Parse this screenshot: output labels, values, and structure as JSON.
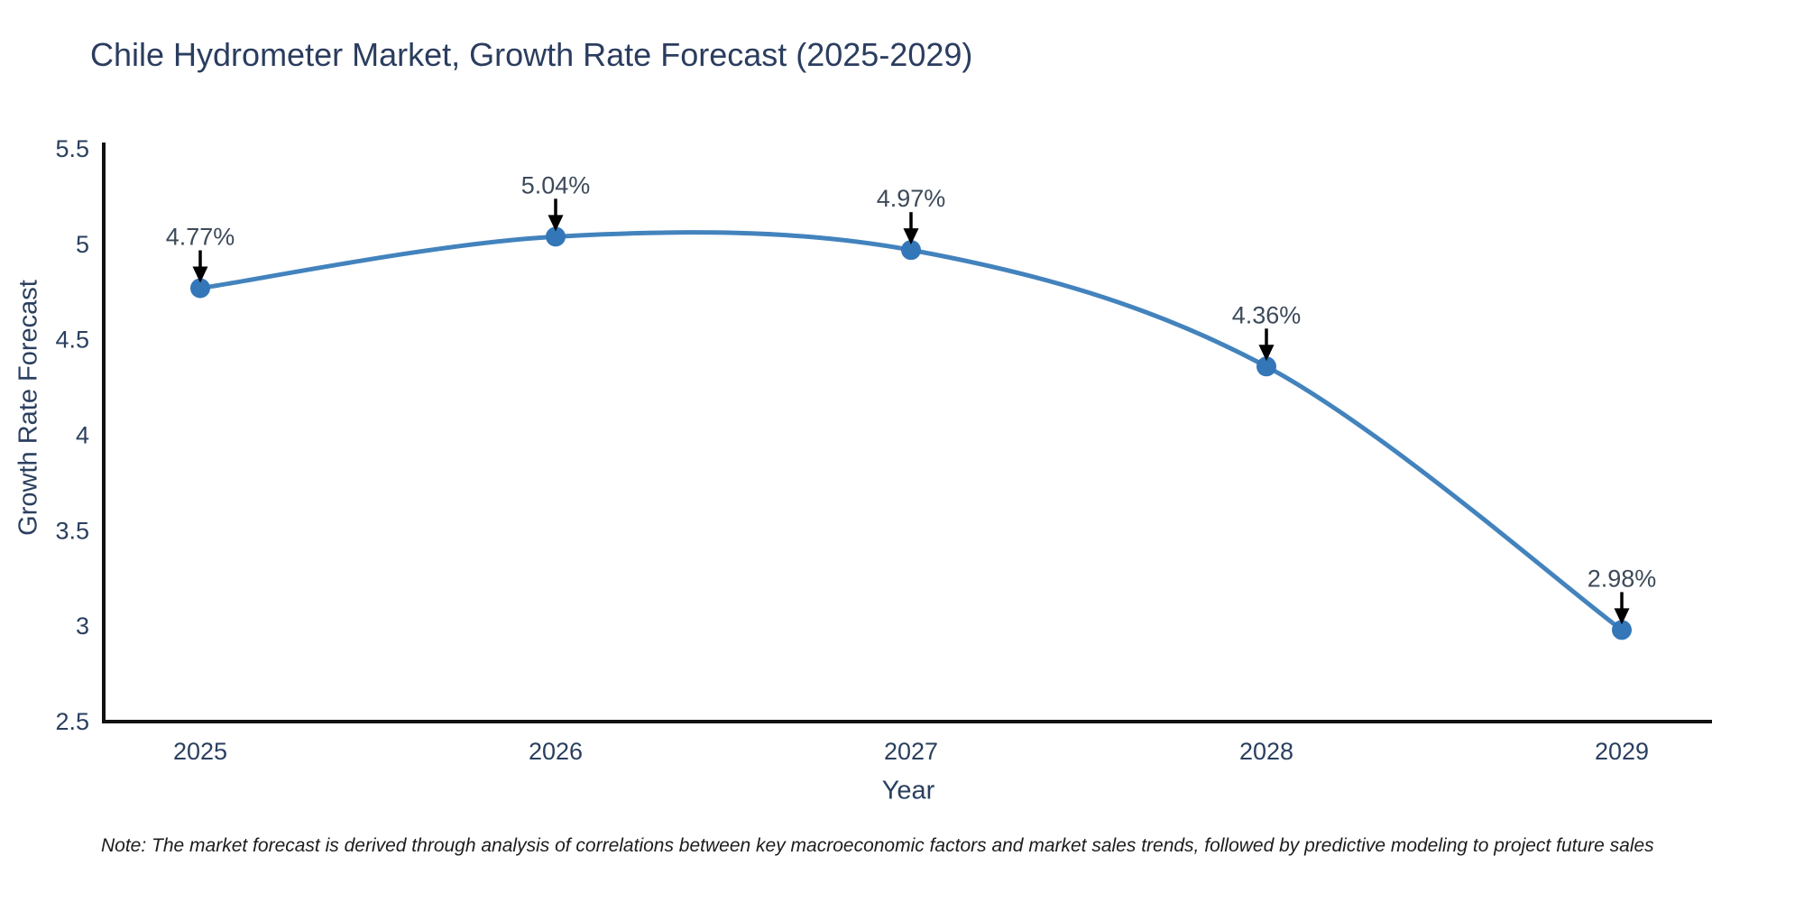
{
  "title": "Chile Hydrometer Market, Growth Rate Forecast (2025-2029)",
  "note": "Note: The market forecast is derived through analysis of correlations between key macroeconomic factors and market sales trends, followed by predictive modeling to project future sales",
  "colors": {
    "title_text": "#2b3d5f",
    "axis_text": "#2a3f5f",
    "annotation_text": "#3d4a5a",
    "axis_line": "#111111",
    "line": "#4383bd",
    "marker": "#3377b8",
    "arrow": "#000000",
    "background": "#ffffff"
  },
  "chart_data": {
    "type": "line",
    "title": "Chile Hydrometer Market, Growth Rate Forecast (2025-2029)",
    "xlabel": "Year",
    "ylabel": "Growth Rate Forecast",
    "categories": [
      "2025",
      "2026",
      "2027",
      "2028",
      "2029"
    ],
    "values": [
      4.77,
      5.04,
      4.97,
      4.36,
      2.98
    ],
    "point_labels": [
      "4.77%",
      "5.04%",
      "4.97%",
      "4.36%",
      "2.98%"
    ],
    "ylim": [
      2.5,
      5.5
    ],
    "yticks": [
      "2.5",
      "3",
      "3.5",
      "4",
      "4.5",
      "5",
      "5.5"
    ],
    "grid": false,
    "legend": "none",
    "line_shape": "spline",
    "marker_style": "circle",
    "annotation_style": "value label with down arrow to point"
  }
}
